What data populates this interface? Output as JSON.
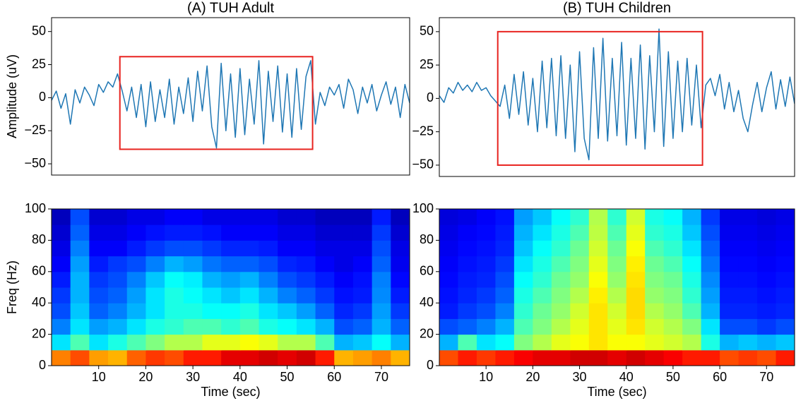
{
  "chart_data": [
    {
      "type": "line",
      "title": "(A) TUH Adult",
      "ylabel": "Amplitude (uV)",
      "color": "#1f77b4",
      "x": [
        0,
        1,
        2,
        3,
        4,
        5,
        6,
        7,
        8,
        9,
        10,
        11,
        12,
        13,
        14,
        15,
        16,
        17,
        18,
        19,
        20,
        21,
        22,
        23,
        24,
        25,
        26,
        27,
        28,
        29,
        30,
        31,
        32,
        33,
        34,
        35,
        36,
        37,
        38,
        39,
        40,
        41,
        42,
        43,
        44,
        45,
        46,
        47,
        48,
        49,
        50,
        51,
        52,
        53,
        54,
        55,
        56,
        57,
        58,
        59,
        60,
        61,
        62,
        63,
        64,
        65,
        66,
        67,
        68,
        69,
        70,
        71,
        72,
        73,
        74,
        75,
        76
      ],
      "values": [
        -2,
        5,
        -8,
        3,
        -20,
        6,
        -4,
        8,
        2,
        -6,
        10,
        4,
        12,
        8,
        18,
        5,
        -10,
        8,
        -15,
        10,
        -22,
        12,
        -18,
        6,
        -15,
        14,
        -20,
        8,
        -12,
        15,
        -18,
        20,
        -10,
        24,
        -22,
        -38,
        26,
        -25,
        18,
        -30,
        22,
        -28,
        14,
        -20,
        28,
        -35,
        20,
        -18,
        24,
        -26,
        18,
        -30,
        22,
        -24,
        16,
        28,
        -20,
        4,
        -6,
        8,
        2,
        10,
        -8,
        14,
        6,
        -12,
        8,
        -4,
        10,
        -10,
        2,
        12,
        -5,
        8,
        -15,
        10,
        -4
      ],
      "xlim": [
        0,
        76
      ],
      "ylim": [
        -58.5,
        60.5
      ],
      "yticks": [
        {
          "value": -50,
          "label": "−50"
        },
        {
          "value": -25,
          "label": "−25"
        },
        0,
        25,
        50
      ],
      "highlight": {
        "xlim": [
          14.5,
          55.4
        ],
        "ylim": [
          -39,
          31
        ],
        "color": "#e8231f"
      }
    },
    {
      "type": "line",
      "title": "(B) TUH Children",
      "color": "#1f77b4",
      "x": [
        0,
        1,
        2,
        3,
        4,
        5,
        6,
        7,
        8,
        9,
        10,
        11,
        12,
        13,
        14,
        15,
        16,
        17,
        18,
        19,
        20,
        21,
        22,
        23,
        24,
        25,
        26,
        27,
        28,
        29,
        30,
        31,
        32,
        33,
        34,
        35,
        36,
        37,
        38,
        39,
        40,
        41,
        42,
        43,
        44,
        45,
        46,
        47,
        48,
        49,
        50,
        51,
        52,
        53,
        54,
        55,
        56,
        57,
        58,
        59,
        60,
        61,
        62,
        63,
        64,
        65,
        66,
        67,
        68,
        69,
        70,
        71,
        72,
        73,
        74,
        75,
        76
      ],
      "values": [
        2,
        -3,
        8,
        4,
        12,
        6,
        10,
        5,
        12,
        6,
        8,
        2,
        -2,
        -6,
        10,
        -15,
        18,
        -12,
        20,
        -20,
        15,
        -25,
        28,
        -22,
        30,
        -28,
        32,
        -30,
        25,
        -40,
        35,
        -30,
        -46,
        38,
        -30,
        45,
        -32,
        30,
        -28,
        42,
        -35,
        30,
        -30,
        40,
        -38,
        32,
        -25,
        52,
        -36,
        35,
        -30,
        28,
        -25,
        30,
        -20,
        25,
        -22,
        10,
        15,
        2,
        18,
        -8,
        12,
        -10,
        6,
        -15,
        -25,
        -5,
        12,
        -10,
        8,
        20,
        -8,
        14,
        -6,
        16,
        -4
      ],
      "xlim": [
        0,
        76
      ],
      "ylim": [
        -58.5,
        60.5
      ],
      "yticks": [
        {
          "value": -50,
          "label": "−50"
        },
        {
          "value": -25,
          "label": "−25"
        },
        0,
        25,
        50
      ],
      "highlight": {
        "xlim": [
          12.5,
          56.3
        ],
        "ylim": [
          -50,
          50
        ],
        "color": "#e8231f"
      }
    },
    {
      "type": "heatmap",
      "ylabel": "Freq (Hz)",
      "xlabel": "Time (sec)",
      "colormap": "jet",
      "x": [
        2,
        6,
        10,
        14,
        18,
        22,
        26,
        30,
        34,
        38,
        42,
        46,
        50,
        54,
        58,
        62,
        66,
        70,
        74
      ],
      "y": [
        5,
        15,
        25,
        35,
        45,
        55,
        65,
        75,
        85,
        95
      ],
      "values": [
        [
          0.75,
          0.8,
          0.72,
          0.7,
          0.78,
          0.82,
          0.8,
          0.85,
          0.85,
          0.9,
          0.9,
          0.92,
          0.9,
          0.92,
          0.85,
          0.7,
          0.72,
          0.75,
          0.7
        ],
        [
          0.35,
          0.45,
          0.35,
          0.4,
          0.45,
          0.5,
          0.55,
          0.55,
          0.6,
          0.6,
          0.62,
          0.6,
          0.55,
          0.55,
          0.45,
          0.3,
          0.32,
          0.38,
          0.3
        ],
        [
          0.25,
          0.35,
          0.28,
          0.3,
          0.35,
          0.4,
          0.42,
          0.45,
          0.45,
          0.42,
          0.45,
          0.4,
          0.38,
          0.35,
          0.3,
          0.2,
          0.22,
          0.3,
          0.22
        ],
        [
          0.2,
          0.32,
          0.22,
          0.25,
          0.3,
          0.35,
          0.4,
          0.4,
          0.38,
          0.38,
          0.4,
          0.35,
          0.32,
          0.28,
          0.22,
          0.16,
          0.18,
          0.28,
          0.18
        ],
        [
          0.18,
          0.3,
          0.2,
          0.22,
          0.28,
          0.35,
          0.4,
          0.38,
          0.35,
          0.32,
          0.35,
          0.3,
          0.25,
          0.22,
          0.18,
          0.14,
          0.15,
          0.26,
          0.15
        ],
        [
          0.15,
          0.3,
          0.18,
          0.2,
          0.25,
          0.32,
          0.38,
          0.36,
          0.3,
          0.28,
          0.3,
          0.25,
          0.2,
          0.18,
          0.15,
          0.12,
          0.14,
          0.25,
          0.13
        ],
        [
          0.12,
          0.28,
          0.15,
          0.18,
          0.2,
          0.25,
          0.3,
          0.28,
          0.24,
          0.22,
          0.22,
          0.2,
          0.16,
          0.15,
          0.12,
          0.1,
          0.12,
          0.22,
          0.11
        ],
        [
          0.1,
          0.25,
          0.12,
          0.12,
          0.15,
          0.18,
          0.2,
          0.2,
          0.18,
          0.16,
          0.16,
          0.15,
          0.12,
          0.12,
          0.1,
          0.1,
          0.1,
          0.2,
          0.1
        ],
        [
          0.08,
          0.22,
          0.1,
          0.1,
          0.12,
          0.14,
          0.15,
          0.15,
          0.14,
          0.12,
          0.12,
          0.12,
          0.1,
          0.1,
          0.08,
          0.08,
          0.08,
          0.18,
          0.08
        ],
        [
          0.06,
          0.2,
          0.08,
          0.08,
          0.1,
          0.1,
          0.12,
          0.12,
          0.1,
          0.1,
          0.1,
          0.1,
          0.08,
          0.08,
          0.06,
          0.06,
          0.06,
          0.15,
          0.06
        ]
      ],
      "xlim": [
        0,
        76
      ],
      "ylim": [
        0,
        100
      ],
      "xticks": [
        10,
        20,
        30,
        40,
        50,
        60,
        70
      ],
      "yticks": [
        0,
        20,
        40,
        60,
        80,
        100
      ]
    },
    {
      "type": "heatmap",
      "xlabel": "Time (sec)",
      "colormap": "jet",
      "x": [
        2,
        6,
        10,
        14,
        18,
        22,
        26,
        30,
        34,
        38,
        42,
        46,
        50,
        54,
        58,
        62,
        66,
        70,
        74
      ],
      "y": [
        5,
        15,
        25,
        35,
        45,
        55,
        65,
        75,
        85,
        95
      ],
      "values": [
        [
          0.8,
          0.85,
          0.82,
          0.85,
          0.88,
          0.9,
          0.9,
          0.92,
          0.92,
          0.9,
          0.92,
          0.9,
          0.88,
          0.85,
          0.85,
          0.8,
          0.82,
          0.8,
          0.85
        ],
        [
          0.3,
          0.45,
          0.35,
          0.38,
          0.5,
          0.55,
          0.6,
          0.62,
          0.65,
          0.62,
          0.62,
          0.6,
          0.58,
          0.55,
          0.4,
          0.3,
          0.32,
          0.3,
          0.32
        ],
        [
          0.2,
          0.22,
          0.25,
          0.3,
          0.45,
          0.5,
          0.55,
          0.6,
          0.65,
          0.6,
          0.65,
          0.58,
          0.55,
          0.5,
          0.35,
          0.2,
          0.2,
          0.18,
          0.2
        ],
        [
          0.15,
          0.18,
          0.2,
          0.25,
          0.42,
          0.48,
          0.52,
          0.58,
          0.65,
          0.58,
          0.66,
          0.55,
          0.52,
          0.45,
          0.3,
          0.16,
          0.16,
          0.15,
          0.16
        ],
        [
          0.14,
          0.16,
          0.18,
          0.22,
          0.4,
          0.45,
          0.5,
          0.55,
          0.64,
          0.55,
          0.66,
          0.52,
          0.5,
          0.42,
          0.28,
          0.15,
          0.15,
          0.14,
          0.15
        ],
        [
          0.13,
          0.15,
          0.16,
          0.2,
          0.38,
          0.42,
          0.48,
          0.52,
          0.62,
          0.52,
          0.65,
          0.5,
          0.48,
          0.4,
          0.26,
          0.14,
          0.14,
          0.13,
          0.14
        ],
        [
          0.12,
          0.14,
          0.15,
          0.18,
          0.35,
          0.4,
          0.45,
          0.5,
          0.6,
          0.5,
          0.64,
          0.48,
          0.45,
          0.38,
          0.24,
          0.13,
          0.13,
          0.12,
          0.13
        ],
        [
          0.11,
          0.13,
          0.14,
          0.16,
          0.32,
          0.38,
          0.42,
          0.48,
          0.58,
          0.48,
          0.62,
          0.45,
          0.42,
          0.35,
          0.22,
          0.12,
          0.12,
          0.11,
          0.12
        ],
        [
          0.1,
          0.12,
          0.13,
          0.15,
          0.3,
          0.35,
          0.4,
          0.45,
          0.56,
          0.45,
          0.6,
          0.42,
          0.4,
          0.32,
          0.2,
          0.11,
          0.11,
          0.1,
          0.11
        ],
        [
          0.09,
          0.1,
          0.12,
          0.14,
          0.28,
          0.32,
          0.38,
          0.42,
          0.55,
          0.42,
          0.58,
          0.4,
          0.38,
          0.3,
          0.18,
          0.1,
          0.1,
          0.09,
          0.1
        ]
      ],
      "xlim": [
        0,
        76
      ],
      "ylim": [
        0,
        100
      ],
      "xticks": [
        10,
        20,
        30,
        40,
        50,
        60,
        70
      ],
      "yticks": [
        0,
        20,
        40,
        60,
        80,
        100
      ]
    }
  ]
}
